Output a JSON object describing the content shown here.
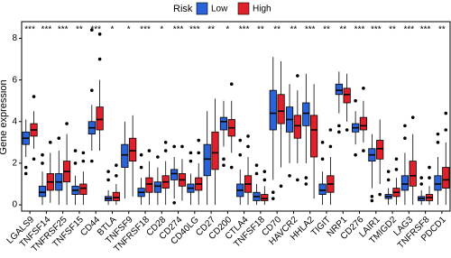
{
  "chart_data": {
    "type": "boxplot",
    "legend_title": "Risk",
    "ylabel": "Gene expression",
    "ylim": [
      -0.3,
      8.8
    ],
    "yticks": [
      0,
      2,
      4,
      6,
      8
    ],
    "categories": [
      "LGALS9",
      "TNFSF14",
      "TNFRSF25",
      "TNFSF15",
      "CD44",
      "BTLA",
      "TNFSF9",
      "TNFRSF18",
      "CD28",
      "CD274",
      "CD40LG",
      "CD27",
      "CD200",
      "CTLA4",
      "TNFSF18",
      "CD70",
      "HAVCR2",
      "HHLA2",
      "TIGIT",
      "NRP1",
      "CD276",
      "LAIR1",
      "TMIGD2",
      "LAG3",
      "TNFRSF8",
      "PDCD1"
    ],
    "annotations": [
      "***",
      "***",
      "***",
      "**",
      "***",
      "*",
      "*",
      "***",
      "*",
      "***",
      "***",
      "**",
      "*",
      "***",
      "**",
      "**",
      "**",
      "***",
      "**",
      "**",
      "***",
      "***",
      "**",
      "***",
      "***",
      "**"
    ],
    "series": [
      {
        "name": "Low",
        "color": "#2a62d8",
        "values": [
          [
            2.3,
            2.9,
            3.2,
            3.5,
            4.1
          ],
          [
            0,
            0.4,
            0.6,
            0.9,
            1.6
          ],
          [
            0,
            0.7,
            1.1,
            1.5,
            2.6
          ],
          [
            0,
            0.5,
            0.7,
            0.9,
            1.4
          ],
          [
            2.6,
            3.4,
            3.7,
            4.0,
            4.8
          ],
          [
            0,
            0.2,
            0.3,
            0.4,
            0.7
          ],
          [
            0.3,
            1.8,
            2.4,
            2.9,
            4.0
          ],
          [
            0,
            0.4,
            0.6,
            0.8,
            1.3
          ],
          [
            0,
            0.6,
            0.9,
            1.1,
            1.8
          ],
          [
            0.3,
            1.2,
            1.5,
            1.7,
            2.3
          ],
          [
            0,
            0.6,
            0.8,
            1.0,
            1.5
          ],
          [
            0,
            1.4,
            2.2,
            2.9,
            4.5
          ],
          [
            2.8,
            3.6,
            4.0,
            4.2,
            5.0
          ],
          [
            0,
            0.4,
            0.7,
            1.0,
            1.7
          ],
          [
            0,
            0.2,
            0.4,
            0.6,
            1.0
          ],
          [
            1.2,
            3.6,
            4.4,
            5.5,
            7.1
          ],
          [
            2.0,
            3.5,
            4.1,
            4.7,
            5.8
          ],
          [
            2.0,
            3.8,
            4.4,
            4.9,
            6.3
          ],
          [
            0,
            0.5,
            0.7,
            1.0,
            1.6
          ],
          [
            4.4,
            5.3,
            5.5,
            5.8,
            6.4
          ],
          [
            2.9,
            3.5,
            3.7,
            3.9,
            4.5
          ],
          [
            0.8,
            2.1,
            2.4,
            2.7,
            3.4
          ],
          [
            0,
            0.3,
            0.4,
            0.5,
            0.8
          ],
          [
            0,
            0.7,
            1.0,
            1.4,
            2.5
          ],
          [
            0,
            0.2,
            0.3,
            0.4,
            0.7
          ],
          [
            0,
            0.7,
            1.0,
            1.4,
            2.3
          ]
        ],
        "outliers": [
          [
            1.8,
            1.5
          ],
          [
            2.0,
            2.4
          ],
          [
            3.2
          ],
          [
            2.0,
            2.6
          ],
          [
            8.4,
            5.5,
            2.1
          ],
          [
            1.2,
            1.6
          ],
          [],
          [
            1.8,
            2.4
          ],
          [
            2.3
          ],
          [
            0.1,
            2.8
          ],
          [
            2.1,
            2.5
          ],
          [],
          [
            1.9,
            2.2
          ],
          [
            2.4,
            3.1
          ],
          [
            1.5,
            1.9
          ],
          [
            0.6,
            0.3
          ],
          [
            1.4
          ],
          [
            1.3,
            1.0
          ],
          [
            2.2,
            3.0
          ],
          [
            3.8,
            3.5
          ],
          [
            2.4,
            5.0
          ],
          [
            0.4,
            0.2
          ],
          [
            1.2,
            1.6
          ],
          [
            3.2,
            3.8
          ],
          [
            1.0,
            1.3
          ],
          [
            3.0,
            3.4
          ]
        ]
      },
      {
        "name": "High",
        "color": "#e0212b",
        "values": [
          [
            2.7,
            3.3,
            3.6,
            3.9,
            4.5
          ],
          [
            0.1,
            0.7,
            1.1,
            1.5,
            2.5
          ],
          [
            0,
            1.1,
            1.6,
            2.1,
            3.4
          ],
          [
            0,
            0.5,
            0.8,
            1.0,
            1.6
          ],
          [
            2.6,
            3.6,
            4.1,
            4.7,
            6.0
          ],
          [
            0,
            0.2,
            0.35,
            0.6,
            1.0
          ],
          [
            0.4,
            2.1,
            2.6,
            3.2,
            4.3
          ],
          [
            0,
            0.6,
            1.0,
            1.3,
            2.1
          ],
          [
            0,
            0.8,
            1.1,
            1.4,
            2.1
          ],
          [
            0.2,
            0.9,
            1.2,
            1.5,
            2.2
          ],
          [
            0,
            0.7,
            1.0,
            1.3,
            2.0
          ],
          [
            0,
            1.7,
            2.5,
            3.5,
            5.1
          ],
          [
            2.5,
            3.3,
            3.7,
            4.1,
            5.0
          ],
          [
            0,
            0.6,
            1.0,
            1.4,
            2.3
          ],
          [
            0,
            0.2,
            0.3,
            0.5,
            0.9
          ],
          [
            1.8,
            3.9,
            4.5,
            5.3,
            6.9
          ],
          [
            2.0,
            3.2,
            3.8,
            4.3,
            5.5
          ],
          [
            0.3,
            2.3,
            3.6,
            4.3,
            5.8
          ],
          [
            0,
            0.6,
            1.0,
            1.4,
            2.3
          ],
          [
            4.0,
            4.9,
            5.3,
            5.6,
            6.3
          ],
          [
            3.0,
            3.6,
            3.8,
            4.2,
            5.0
          ],
          [
            1.0,
            2.2,
            2.7,
            3.1,
            4.1
          ],
          [
            0,
            0.4,
            0.6,
            0.8,
            1.3
          ],
          [
            0,
            0.9,
            1.4,
            2.1,
            3.4
          ],
          [
            0,
            0.2,
            0.35,
            0.5,
            0.9
          ],
          [
            0,
            0.8,
            1.2,
            1.8,
            3.0
          ]
        ],
        "outliers": [
          [
            5.2,
            2.2
          ],
          [
            3.0
          ],
          [
            3.9
          ],
          [
            2.1,
            2.5
          ],
          [
            8.2,
            7.0
          ],
          [
            1.4,
            1.9
          ],
          [],
          [
            2.6
          ],
          [
            2.6,
            3.0
          ],
          [
            2.8
          ],
          [
            2.5,
            3.1
          ],
          [],
          [
            1.8,
            5.8
          ],
          [
            2.8,
            3.3
          ],
          [
            1.2,
            1.6
          ],
          [
            0.9
          ],
          [
            1.2,
            6.2
          ],
          [],
          [
            2.8,
            3.6
          ],
          [
            3.6
          ],
          [
            5.6,
            2.6
          ],
          [
            0.5
          ],
          [
            1.7,
            2.2
          ],
          [
            4.2
          ],
          [
            1.3,
            1.8
          ],
          [
            3.6,
            4.4
          ]
        ]
      }
    ]
  }
}
